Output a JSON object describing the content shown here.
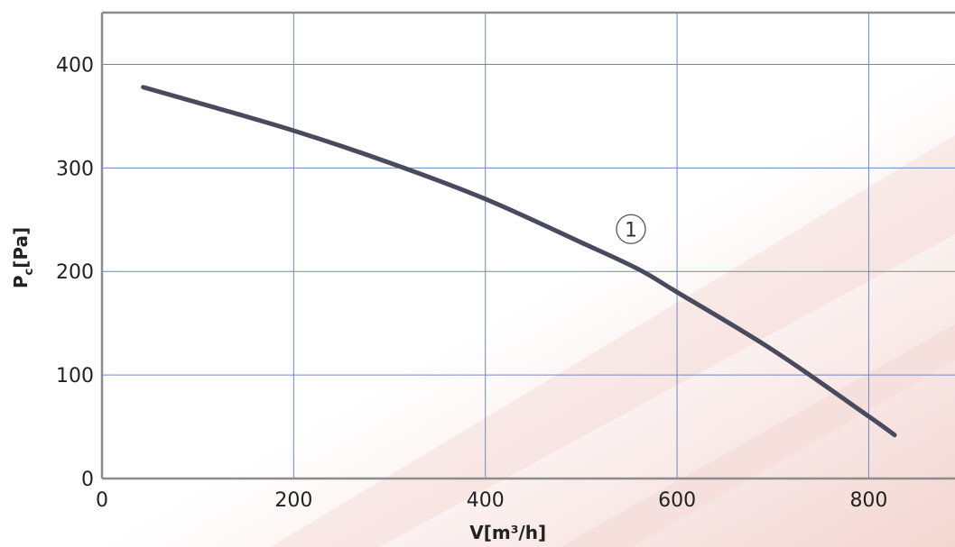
{
  "chart_data": {
    "type": "line",
    "xlabel": "V[m³/h]",
    "ylabel": "P",
    "ylabel_sub": "c",
    "ylabel_unit": "[Pa]",
    "xlim": [
      0,
      890
    ],
    "ylim": [
      0,
      450
    ],
    "x_ticks": [
      0,
      200,
      400,
      600,
      800
    ],
    "y_ticks": [
      0,
      100,
      200,
      300,
      400
    ],
    "grid": true,
    "series": [
      {
        "x": [
          43,
          100,
          200,
          300,
          400,
          500,
          560,
          600,
          700,
          800,
          827
        ],
        "y": [
          378,
          363,
          336,
          305,
          270,
          228,
          202,
          180,
          124,
          60,
          42
        ]
      }
    ],
    "annotations": [
      {
        "text": "1",
        "x": 550,
        "y": 240
      }
    ],
    "colors": {
      "curve": "#4a4a5e",
      "grid": "#6f86c6",
      "frame": "#8c8c8c",
      "background_tint": "#f3d6d2"
    }
  }
}
